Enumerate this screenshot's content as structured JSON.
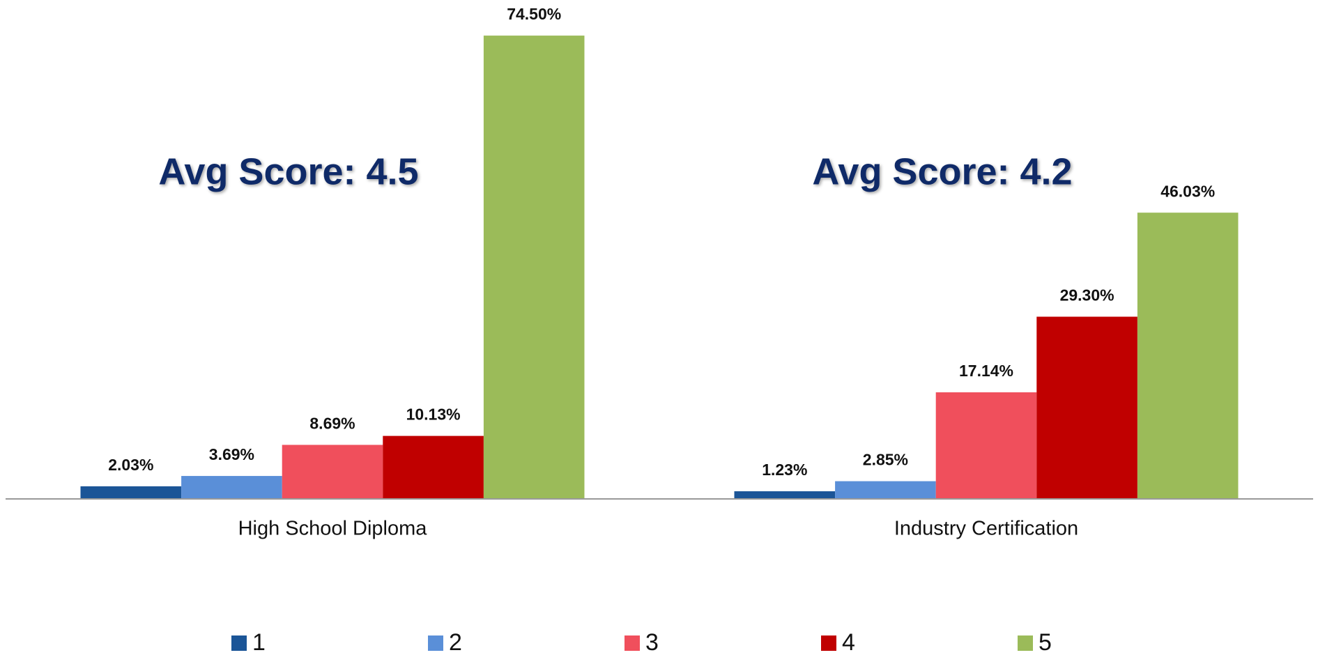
{
  "chart_data": {
    "type": "bar",
    "categories": [
      "High School Diploma",
      "Industry Certification"
    ],
    "series": [
      {
        "name": "1",
        "color": "#1b5597",
        "values": [
          2.03,
          1.23
        ],
        "value_labels": [
          "2.03%",
          "1.23%"
        ]
      },
      {
        "name": "2",
        "color": "#5a8fd8",
        "values": [
          3.69,
          2.85
        ],
        "value_labels": [
          "3.69%",
          "2.85%"
        ]
      },
      {
        "name": "3",
        "color": "#f04f5c",
        "values": [
          8.69,
          17.14
        ],
        "value_labels": [
          "8.69%",
          "17.14%"
        ]
      },
      {
        "name": "4",
        "color": "#c00000",
        "values": [
          10.13,
          29.3
        ],
        "value_labels": [
          "10.13%",
          "29.30%"
        ]
      },
      {
        "name": "5",
        "color": "#9bbb59",
        "values": [
          74.5,
          46.03
        ],
        "value_labels": [
          "74.50%",
          "46.03%"
        ]
      }
    ],
    "annotations": [
      "Avg Score: 4.5",
      "Avg Score: 4.2"
    ],
    "ylim": [
      0,
      80
    ],
    "legend": "bottom"
  }
}
